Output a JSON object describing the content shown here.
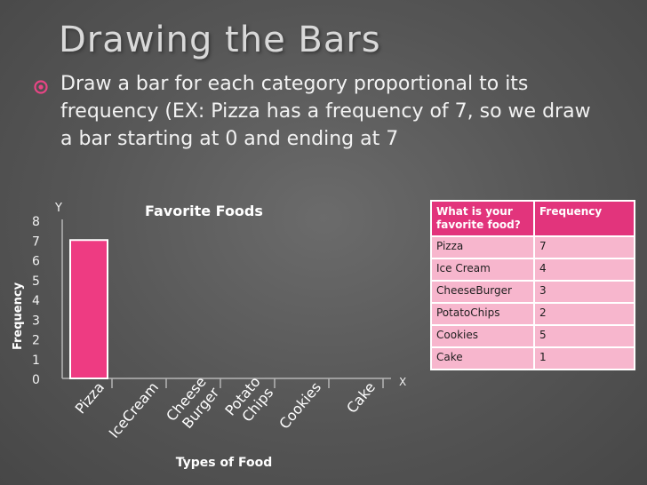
{
  "slide": {
    "title": "Drawing the Bars",
    "bullet": "Draw a bar for each category proportional to its frequency (EX: Pizza has a frequency of 7, so we draw a bar starting at 0 and ending at 7"
  },
  "colors": {
    "bar": "#ee3b82",
    "table_header": "#e2347c",
    "table_body": "#f7b6cd",
    "bullet": "#e84585"
  },
  "chart_data": {
    "type": "bar",
    "title": "Favorite Foods",
    "xlabel": "Types of Food",
    "ylabel": "Frequency",
    "x_axis_letter": "X",
    "y_axis_letter": "Y",
    "categories": [
      "Pizza",
      "IceCream",
      "Cheese Burger",
      "Potato Chips",
      "Cookies",
      "Cake"
    ],
    "category_label_lines": [
      [
        "Pizza"
      ],
      [
        "IceCream"
      ],
      [
        "Cheese",
        "Burger"
      ],
      [
        "Potato",
        "Chips"
      ],
      [
        "Cookies"
      ],
      [
        "Cake"
      ]
    ],
    "values": [
      7,
      null,
      null,
      null,
      null,
      null
    ],
    "yticks": [
      "0",
      "1",
      "2",
      "3",
      "4",
      "5",
      "6",
      "7",
      "8"
    ],
    "ylim": [
      0,
      8
    ],
    "grid": false,
    "legend": "none"
  },
  "table": {
    "headers": [
      "What is your favorite food?",
      "Frequency"
    ],
    "rows": [
      [
        "Pizza",
        "7"
      ],
      [
        "Ice Cream",
        "4"
      ],
      [
        "CheeseBurger",
        "3"
      ],
      [
        "PotatoChips",
        "2"
      ],
      [
        "Cookies",
        "5"
      ],
      [
        "Cake",
        "1"
      ]
    ]
  }
}
